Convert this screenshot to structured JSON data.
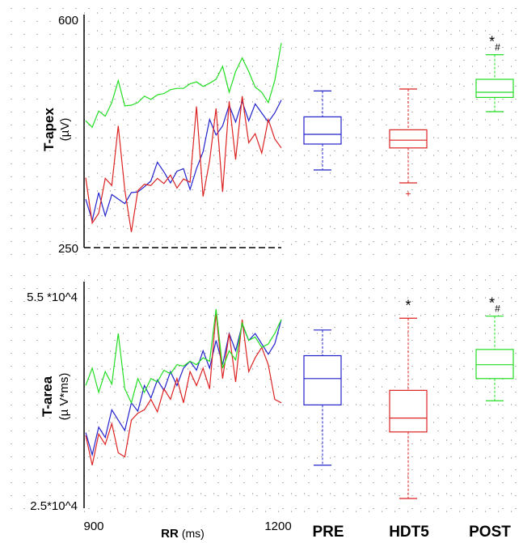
{
  "colors": {
    "PRE": "#2222cc",
    "HDT5": "#dd2222",
    "POST": "#22dd22",
    "grid": "#000000"
  },
  "x_axis": {
    "label_bold": "RR",
    "label_unit": "(ms)",
    "ticks": [
      "900",
      "1200"
    ],
    "range": [
      900,
      1200
    ]
  },
  "groups": [
    "PRE",
    "HDT5",
    "POST"
  ],
  "chart_data": [
    {
      "type": "line",
      "panel": "top",
      "ylabel": "T-apex",
      "yunit": "(µV)",
      "ytick_labels": [
        "600",
        "250"
      ],
      "ylim": [
        250,
        600
      ],
      "xlim": [
        900,
        1200
      ],
      "grid": true,
      "series": [
        {
          "name": "PRE",
          "color": "#2222cc",
          "x": [
            900,
            910,
            920,
            930,
            940,
            950,
            960,
            970,
            980,
            990,
            1000,
            1010,
            1020,
            1030,
            1040,
            1050,
            1060,
            1070,
            1080,
            1090,
            1100,
            1110,
            1120,
            1130,
            1140,
            1150,
            1160,
            1170,
            1180,
            1190,
            1200
          ],
          "values": [
            325,
            292,
            335,
            299,
            332,
            325,
            318,
            335,
            336,
            344,
            353,
            382,
            367,
            350,
            368,
            372,
            340,
            372,
            398,
            448,
            424,
            438,
            470,
            444,
            476,
            446,
            472,
            458,
            444,
            458,
            478
          ]
        },
        {
          "name": "HDT5",
          "color": "#dd2222",
          "x": [
            900,
            910,
            920,
            930,
            940,
            950,
            960,
            970,
            980,
            990,
            1000,
            1010,
            1020,
            1030,
            1040,
            1050,
            1060,
            1070,
            1080,
            1090,
            1100,
            1110,
            1120,
            1130,
            1140,
            1150,
            1160,
            1170,
            1180,
            1190,
            1200
          ],
          "values": [
            358,
            288,
            303,
            357,
            346,
            438,
            339,
            274,
            338,
            348,
            346,
            357,
            349,
            362,
            342,
            356,
            351,
            468,
            329,
            384,
            465,
            336,
            476,
            386,
            484,
            412,
            426,
            396,
            448,
            418,
            404
          ]
        },
        {
          "name": "POST",
          "color": "#22dd22",
          "x": [
            900,
            910,
            920,
            930,
            940,
            950,
            960,
            970,
            980,
            990,
            1000,
            1010,
            1020,
            1030,
            1040,
            1050,
            1060,
            1070,
            1080,
            1090,
            1100,
            1110,
            1120,
            1130,
            1140,
            1150,
            1160,
            1170,
            1180,
            1190,
            1200
          ],
          "values": [
            446,
            436,
            461,
            453,
            474,
            508,
            469,
            470,
            474,
            484,
            479,
            486,
            488,
            494,
            496,
            496,
            503,
            506,
            499,
            504,
            510,
            530,
            490,
            522,
            543,
            522,
            498,
            490,
            474,
            508,
            566
          ]
        }
      ],
      "boxplots": [
        {
          "group": "PRE",
          "min": 370,
          "q1": 410,
          "median": 425,
          "q3": 452,
          "max": 492
        },
        {
          "group": "HDT5",
          "min": 350,
          "q1": 404,
          "median": 416,
          "q3": 432,
          "max": 495,
          "outliers": [
            333
          ]
        },
        {
          "group": "POST",
          "min": 460,
          "q1": 482,
          "median": 490,
          "q3": 510,
          "max": 548
        }
      ],
      "annotations": [
        {
          "group": "POST",
          "text": "*#"
        }
      ]
    },
    {
      "type": "line",
      "panel": "bottom",
      "ylabel": "T-area",
      "yunit": "(µ V*ms)",
      "ytick_labels": [
        "5.5 *10^4",
        "2.5*10^4"
      ],
      "ylim": [
        25000,
        55000
      ],
      "xlim": [
        900,
        1200
      ],
      "grid": true,
      "series": [
        {
          "name": "PRE",
          "color": "#2222cc",
          "x": [
            900,
            910,
            920,
            930,
            940,
            950,
            960,
            970,
            980,
            990,
            1000,
            1010,
            1020,
            1030,
            1040,
            1050,
            1060,
            1070,
            1080,
            1090,
            1100,
            1110,
            1120,
            1130,
            1140,
            1150,
            1160,
            1170,
            1180,
            1190,
            1200
          ],
          "values": [
            35200,
            32000,
            36000,
            34500,
            38500,
            37000,
            35500,
            39500,
            38300,
            42000,
            40200,
            42800,
            41300,
            44000,
            42000,
            44500,
            45500,
            44200,
            47000,
            44500,
            48500,
            45000,
            49500,
            47000,
            50800,
            48500,
            49500,
            48000,
            46500,
            48000,
            51500
          ]
        },
        {
          "name": "HDT5",
          "color": "#dd2222",
          "x": [
            900,
            910,
            920,
            930,
            940,
            950,
            960,
            970,
            980,
            990,
            1000,
            1010,
            1020,
            1030,
            1040,
            1050,
            1060,
            1070,
            1080,
            1090,
            1100,
            1110,
            1120,
            1130,
            1140,
            1150,
            1160,
            1170,
            1180,
            1190,
            1200
          ],
          "values": [
            34800,
            30500,
            35000,
            33500,
            36500,
            32300,
            31700,
            37000,
            38000,
            38500,
            40000,
            38200,
            41500,
            40000,
            43000,
            39500,
            44000,
            42000,
            44500,
            41500,
            52500,
            43000,
            49500,
            42500,
            51500,
            44000,
            46000,
            47500,
            45000,
            40000,
            39500
          ]
        },
        {
          "name": "POST",
          "color": "#22dd22",
          "x": [
            900,
            910,
            920,
            930,
            940,
            950,
            960,
            970,
            980,
            990,
            1000,
            1010,
            1020,
            1030,
            1040,
            1050,
            1060,
            1070,
            1080,
            1090,
            1100,
            1110,
            1120,
            1130,
            1140,
            1150,
            1160,
            1170,
            1180,
            1190,
            1200
          ],
          "values": [
            42000,
            44500,
            41000,
            44000,
            42200,
            49500,
            41500,
            39500,
            43000,
            41000,
            43000,
            42500,
            44200,
            43700,
            45000,
            44800,
            45500,
            45000,
            46000,
            45500,
            53000,
            44500,
            47000,
            45700,
            51000,
            48500,
            49000,
            47500,
            48000,
            49500,
            51500
          ]
        }
      ],
      "boxplots": [
        {
          "group": "PRE",
          "min": 30500,
          "q1": 39200,
          "median": 43000,
          "q3": 46300,
          "max": 50000
        },
        {
          "group": "HDT5",
          "min": 25700,
          "q1": 35300,
          "median": 37300,
          "q3": 41300,
          "max": 51700
        },
        {
          "group": "POST",
          "min": 39800,
          "q1": 43000,
          "median": 45000,
          "q3": 47200,
          "max": 52000
        }
      ],
      "annotations": [
        {
          "group": "HDT5",
          "text": "*"
        },
        {
          "group": "POST",
          "text": "*#"
        }
      ]
    }
  ]
}
